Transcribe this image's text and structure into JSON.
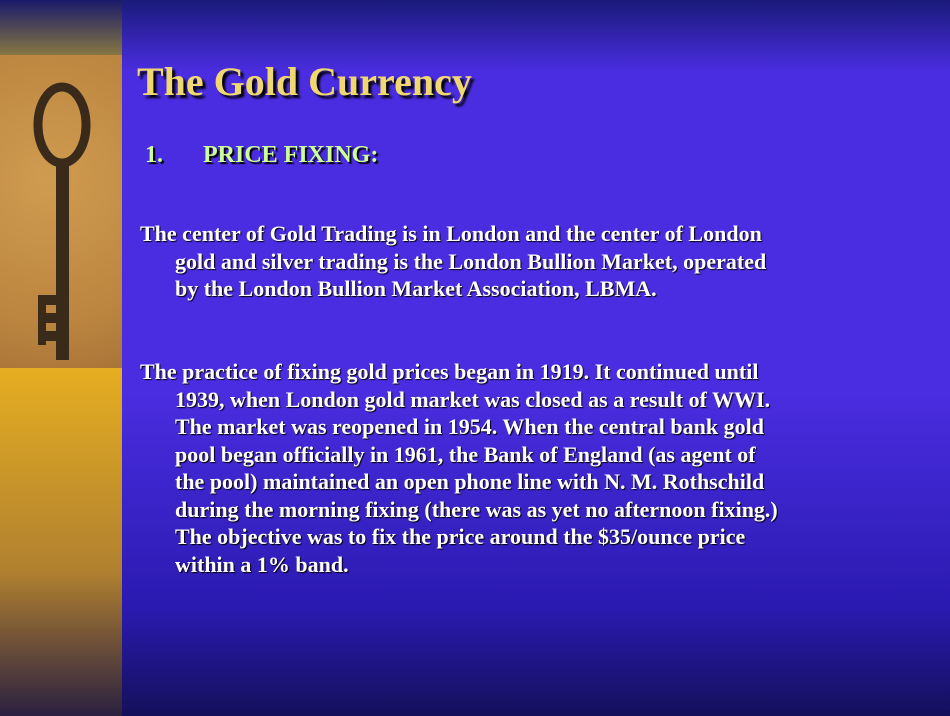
{
  "title": "The Gold Currency",
  "heading": {
    "number": "1.",
    "text": "PRICE FIXING:"
  },
  "paragraphs": [
    [
      "The center of Gold Trading is in London and the center of London",
      "gold and silver trading is the London Bullion Market, operated",
      "by the London Bullion Market Association, LBMA."
    ],
    [
      "The practice of fixing gold prices began in 1919. It continued until",
      "1939, when London gold market was closed as a result of WWI.",
      "The market was reopened in 1954. When the central bank gold",
      "pool began officially in 1961, the Bank of England (as agent of",
      "the pool) maintained an open phone line with N. M. Rothschild",
      "during the morning fixing (there was as yet no afternoon fixing.)",
      "The objective was to fix the price around the $35/ounce price",
      "within a 1% band."
    ]
  ]
}
